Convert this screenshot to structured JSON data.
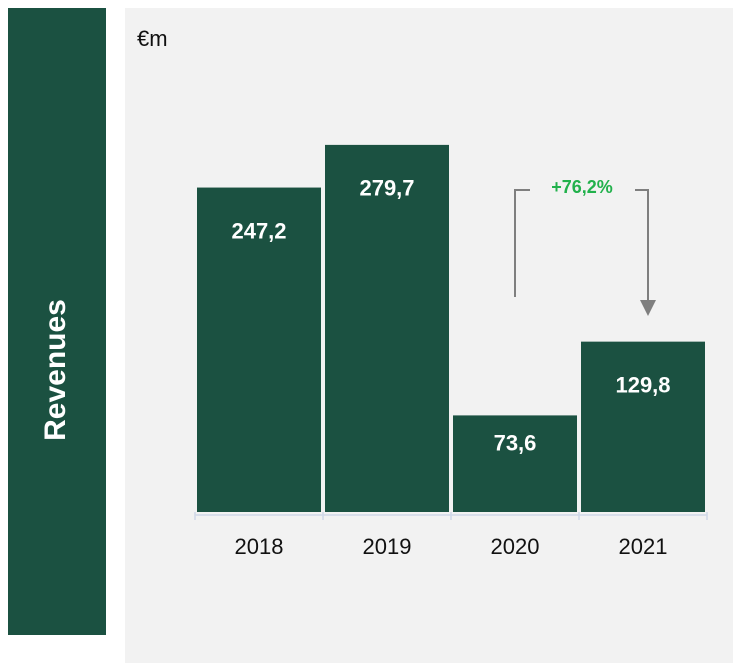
{
  "chart_data": {
    "type": "bar",
    "title": "Revenues",
    "y_label": "€m",
    "categories": [
      "2018",
      "2019",
      "2020",
      "2021"
    ],
    "values": [
      247.2,
      279.7,
      73.6,
      129.8
    ],
    "value_labels": [
      "247,2",
      "279,7",
      "73,6",
      "129,8"
    ],
    "color": "#1b5141",
    "ylim": [
      0,
      320
    ],
    "annotation": "+76,2%"
  }
}
